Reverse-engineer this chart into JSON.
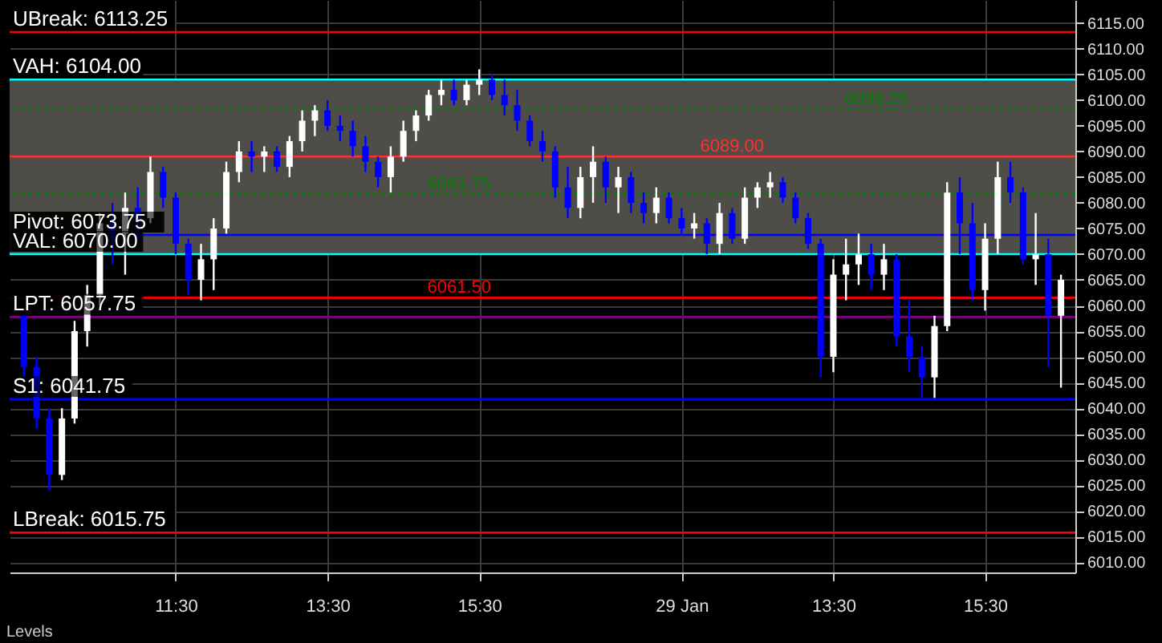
{
  "chart_data": {
    "type": "candlestick",
    "categories": [
      null,
      null,
      null,
      null,
      null,
      null,
      null,
      null,
      null,
      null,
      null,
      null,
      "11:30",
      null,
      null,
      null,
      null,
      null,
      null,
      null,
      null,
      null,
      null,
      null,
      "13:30",
      null,
      null,
      null,
      null,
      null,
      null,
      null,
      null,
      null,
      null,
      null,
      "15:30",
      null,
      null,
      null,
      null,
      null,
      null,
      null,
      null,
      null,
      null,
      null,
      null,
      null,
      null,
      null,
      "29 Jan",
      null,
      null,
      null,
      null,
      null,
      null,
      null,
      null,
      null,
      null,
      null,
      "13:30",
      null,
      null,
      null,
      null,
      null,
      null,
      null,
      null,
      null,
      null,
      null,
      "15:30",
      null,
      null,
      null,
      null,
      null,
      null
    ],
    "ohlc": [
      [
        6058,
        6058,
        6046,
        6048
      ],
      [
        6048,
        6050,
        6036,
        6038
      ],
      [
        6038,
        6040,
        6024,
        6027
      ],
      [
        6027,
        6040,
        6026,
        6038
      ],
      [
        6038,
        6057,
        6037,
        6055
      ],
      [
        6055,
        6064,
        6052,
        6062
      ],
      [
        6062,
        6078,
        6060,
        6076
      ],
      [
        6076,
        6080,
        6068,
        6074
      ],
      [
        6074,
        6082,
        6066,
        6079
      ],
      [
        6079,
        6083,
        6073,
        6077
      ],
      [
        6077,
        6089,
        6076,
        6086
      ],
      [
        6086,
        6087,
        6079,
        6081
      ],
      [
        6081,
        6082,
        6070,
        6072
      ],
      [
        6072,
        6073,
        6062,
        6065
      ],
      [
        6065,
        6072,
        6061,
        6069
      ],
      [
        6069,
        6077,
        6063,
        6075
      ],
      [
        6075,
        6088,
        6074,
        6086
      ],
      [
        6086,
        6092,
        6084,
        6090
      ],
      [
        6090,
        6092,
        6086,
        6089
      ],
      [
        6089,
        6091,
        6086,
        6090
      ],
      [
        6090,
        6091,
        6086,
        6087
      ],
      [
        6087,
        6093,
        6085,
        6092
      ],
      [
        6092,
        6098,
        6090,
        6096
      ],
      [
        6096,
        6099,
        6093,
        6098
      ],
      [
        6098,
        6100,
        6094,
        6095
      ],
      [
        6095,
        6097,
        6092,
        6094
      ],
      [
        6094,
        6096,
        6089,
        6091
      ],
      [
        6091,
        6093,
        6086,
        6088
      ],
      [
        6088,
        6089,
        6083,
        6085
      ],
      [
        6085,
        6091,
        6082,
        6089
      ],
      [
        6089,
        6096,
        6088,
        6094
      ],
      [
        6094,
        6098,
        6092,
        6097
      ],
      [
        6097,
        6102,
        6096,
        6101
      ],
      [
        6101,
        6104,
        6099,
        6102
      ],
      [
        6102,
        6104,
        6099,
        6100
      ],
      [
        6100,
        6104,
        6099,
        6103
      ],
      [
        6103,
        6106,
        6101,
        6104
      ],
      [
        6104,
        6105,
        6100,
        6101
      ],
      [
        6101,
        6104,
        6097,
        6099
      ],
      [
        6099,
        6102,
        6094,
        6096
      ],
      [
        6096,
        6097,
        6091,
        6092
      ],
      [
        6092,
        6094,
        6088,
        6090
      ],
      [
        6090,
        6091,
        6081,
        6083
      ],
      [
        6083,
        6087,
        6077,
        6079
      ],
      [
        6079,
        6087,
        6077,
        6085
      ],
      [
        6085,
        6091,
        6080,
        6088
      ],
      [
        6088,
        6089,
        6080,
        6083
      ],
      [
        6083,
        6087,
        6078,
        6085
      ],
      [
        6085,
        6086,
        6078,
        6080
      ],
      [
        6080,
        6082,
        6076,
        6078
      ],
      [
        6078,
        6083,
        6076,
        6081
      ],
      [
        6081,
        6082,
        6076,
        6077
      ],
      [
        6077,
        6079,
        6074,
        6075
      ],
      [
        6075,
        6078,
        6073,
        6076
      ],
      [
        6076,
        6077,
        6070,
        6072
      ],
      [
        6072,
        6080,
        6070,
        6078
      ],
      [
        6078,
        6079,
        6072,
        6073
      ],
      [
        6073,
        6083,
        6072,
        6081
      ],
      [
        6081,
        6084,
        6079,
        6083
      ],
      [
        6083,
        6086,
        6081,
        6084
      ],
      [
        6084,
        6085,
        6080,
        6081
      ],
      [
        6081,
        6082,
        6076,
        6077
      ],
      [
        6077,
        6078,
        6071,
        6072
      ],
      [
        6072,
        6073,
        6046,
        6050
      ],
      [
        6050,
        6069,
        6047,
        6066
      ],
      [
        6066,
        6073,
        6061,
        6068
      ],
      [
        6068,
        6074,
        6064,
        6070
      ],
      [
        6070,
        6072,
        6063,
        6066
      ],
      [
        6066,
        6072,
        6063,
        6069
      ],
      [
        6069,
        6070,
        6052,
        6054
      ],
      [
        6054,
        6061,
        6047,
        6050
      ],
      [
        6050,
        6052,
        6042,
        6046
      ],
      [
        6046,
        6058,
        6042,
        6056
      ],
      [
        6056,
        6084,
        6055,
        6082
      ],
      [
        6082,
        6085,
        6070,
        6076
      ],
      [
        6076,
        6080,
        6061,
        6063
      ],
      [
        6063,
        6076,
        6059,
        6073
      ],
      [
        6073,
        6088,
        6070,
        6085
      ],
      [
        6085,
        6088,
        6080,
        6082
      ],
      [
        6082,
        6083,
        6068,
        6069
      ],
      [
        6069,
        6078,
        6064,
        6070
      ],
      [
        6070,
        6073,
        6048,
        6058
      ],
      [
        6058,
        6066,
        6044,
        6065
      ]
    ],
    "colors": [
      "#0000ff",
      "#0000ff",
      "#0000ff",
      "#ffffff",
      "#ffffff",
      "#ffffff",
      "#ffffff",
      "#0000ff",
      "#ffffff",
      "#0000ff",
      "#ffffff",
      "#0000ff",
      "#0000ff",
      "#0000ff",
      "#ffffff",
      "#ffffff",
      "#ffffff",
      "#ffffff",
      "#0000ff",
      "#ffffff",
      "#0000ff",
      "#ffffff",
      "#ffffff",
      "#ffffff",
      "#0000ff",
      "#0000ff",
      "#0000ff",
      "#0000ff",
      "#0000ff",
      "#ffffff",
      "#ffffff",
      "#ffffff",
      "#ffffff",
      "#ffffff",
      "#0000ff",
      "#ffffff",
      "#ffffff",
      "#0000ff",
      "#0000ff",
      "#0000ff",
      "#0000ff",
      "#0000ff",
      "#0000ff",
      "#0000ff",
      "#ffffff",
      "#ffffff",
      "#0000ff",
      "#ffffff",
      "#0000ff",
      "#0000ff",
      "#ffffff",
      "#0000ff",
      "#0000ff",
      "#ffffff",
      "#0000ff",
      "#ffffff",
      "#0000ff",
      "#ffffff",
      "#ffffff",
      "#ffffff",
      "#0000ff",
      "#0000ff",
      "#0000ff",
      "#0000ff",
      "#ffffff",
      "#ffffff",
      "#ffffff",
      "#0000ff",
      "#ffffff",
      "#0000ff",
      "#0000ff",
      "#0000ff",
      "#ffffff",
      "#ffffff",
      "#0000ff",
      "#0000ff",
      "#ffffff",
      "#ffffff",
      "#0000ff",
      "#0000ff",
      "#ffffff",
      "#0000ff",
      "#ffffff"
    ],
    "ylim": [
      6008,
      6119.5
    ],
    "yticks": [
      {
        "value": 6010,
        "label": "6010.00"
      },
      {
        "value": 6015,
        "label": "6015.00"
      },
      {
        "value": 6020,
        "label": "6020.00"
      },
      {
        "value": 6025,
        "label": "6025.00"
      },
      {
        "value": 6030,
        "label": "6030.00"
      },
      {
        "value": 6035,
        "label": "6035.00"
      },
      {
        "value": 6040,
        "label": "6040.00"
      },
      {
        "value": 6045,
        "label": "6045.00"
      },
      {
        "value": 6050,
        "label": "6050.00"
      },
      {
        "value": 6055,
        "label": "6055.00"
      },
      {
        "value": 6060,
        "label": "6060.00"
      },
      {
        "value": 6065,
        "label": "6065.00"
      },
      {
        "value": 6070,
        "label": "6070.00"
      },
      {
        "value": 6075,
        "label": "6075.00"
      },
      {
        "value": 6080,
        "label": "6080.00"
      },
      {
        "value": 6085,
        "label": "6085.00"
      },
      {
        "value": 6090,
        "label": "6090.00"
      },
      {
        "value": 6095,
        "label": "6095.00"
      },
      {
        "value": 6100,
        "label": "6100.00"
      },
      {
        "value": 6105,
        "label": "6105.00"
      },
      {
        "value": 6110,
        "label": "6110.00"
      },
      {
        "value": 6115,
        "label": "6115.00"
      }
    ],
    "grid": true,
    "bands": [
      {
        "axis": "y",
        "from": 6070,
        "to": 6104,
        "color": "#4f4d47"
      }
    ],
    "ref_lines": [
      {
        "axis": "y",
        "value": 6113.25,
        "label": "UBreak: 6113.25",
        "color": "#ff0000"
      },
      {
        "axis": "y",
        "value": 6104,
        "label": "VAH: 6104.00",
        "color": "#00ffff"
      },
      {
        "axis": "y",
        "value": 6073.75,
        "label": "Pivot: 6073.75",
        "color": "#0000ff"
      },
      {
        "axis": "y",
        "value": 6070,
        "label": "VAL: 6070.00",
        "color": "#00ffff"
      },
      {
        "axis": "y",
        "value": 6057.75,
        "label": "LPT: 6057.75",
        "color": "#800080"
      },
      {
        "axis": "y",
        "value": 6041.75,
        "label": "S1: 6041.75",
        "color": "#0000ff"
      },
      {
        "axis": "y",
        "value": 6015.75,
        "label": "LBreak: 6015.75",
        "color": "#ff0000"
      },
      {
        "axis": "y",
        "value": 6098.25,
        "label": "6098.25",
        "color": "#008000",
        "line_style": "dotted"
      },
      {
        "axis": "y",
        "value": 6089,
        "label": "6089.00",
        "color": "#ff3030"
      },
      {
        "axis": "y",
        "value": 6081.75,
        "label": "6081.75",
        "color": "#008000",
        "line_style": "dotted"
      },
      {
        "axis": "y",
        "value": 6061.5,
        "label": "6061.50",
        "color": "#ff0000"
      }
    ],
    "annotations": [
      "Levels"
    ]
  }
}
